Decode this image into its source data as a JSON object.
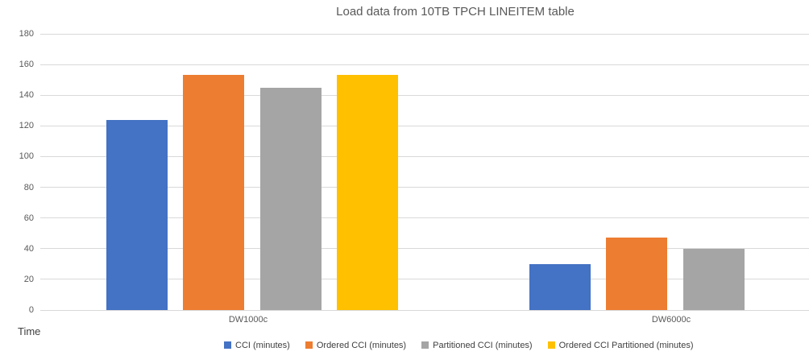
{
  "chart_data": {
    "type": "bar",
    "title": "Load data from 10TB TPCH LINEITEM table",
    "categories": [
      "DW1000c",
      "DW6000c"
    ],
    "series": [
      {
        "name": "CCI (minutes)",
        "color": "#4472C4",
        "values": [
          124,
          30
        ]
      },
      {
        "name": "Ordered CCI (minutes)",
        "color": "#ED7D31",
        "values": [
          153,
          47
        ]
      },
      {
        "name": "Partitioned CCI (minutes)",
        "color": "#A5A5A5",
        "values": [
          145,
          40
        ]
      },
      {
        "name": "Ordered CCI Partitioned (minutes)",
        "color": "#FFC000",
        "values": [
          153,
          null
        ]
      }
    ],
    "xlabel": "",
    "ylabel": "Time",
    "ylim": [
      0,
      180
    ],
    "ytick_step": 20,
    "yticks": [
      0,
      20,
      40,
      60,
      80,
      100,
      120,
      140,
      160,
      180
    ],
    "grid": true,
    "legend_position": "bottom",
    "colors": {
      "axis_text": "#595959",
      "gridline": "#D9D9D9",
      "title_text": "#595959"
    }
  }
}
